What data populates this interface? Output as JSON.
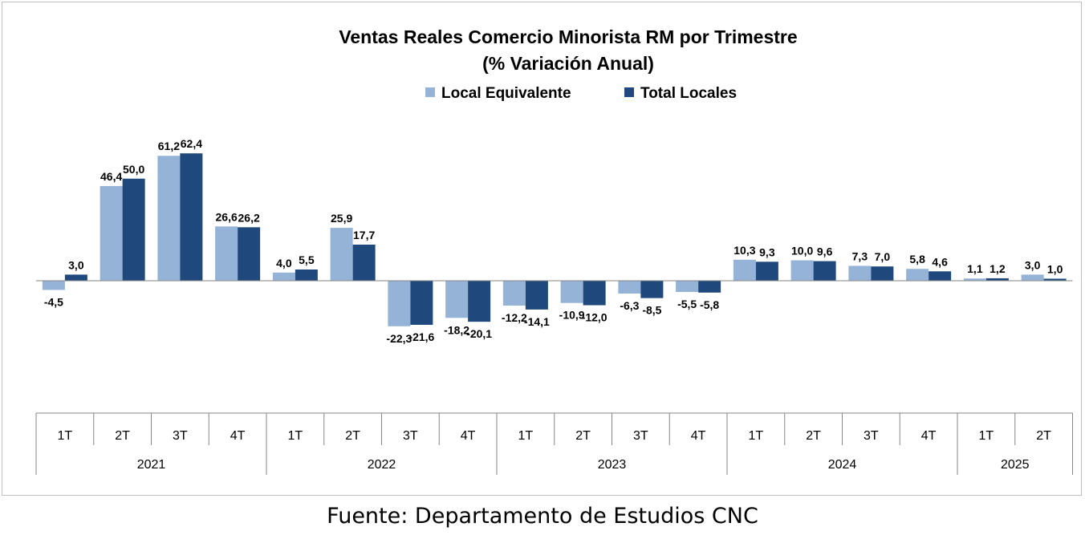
{
  "chart_data": {
    "type": "bar",
    "title": "Ventas Reales Comercio Minorista RM por Trimestre",
    "subtitle": "(% Variación Anual)",
    "legend_position": "top-center",
    "grid": false,
    "categories": [
      "1T",
      "2T",
      "3T",
      "4T",
      "1T",
      "2T",
      "3T",
      "4T",
      "1T",
      "2T",
      "3T",
      "4T",
      "1T",
      "2T",
      "3T",
      "4T",
      "1T",
      "2T"
    ],
    "years": [
      {
        "label": "2021",
        "span": 4
      },
      {
        "label": "2022",
        "span": 4
      },
      {
        "label": "2023",
        "span": 4
      },
      {
        "label": "2024",
        "span": 4
      },
      {
        "label": "2025",
        "span": 2
      }
    ],
    "series": [
      {
        "name": "Local Equivalente",
        "color": "#95b3d7",
        "values": [
          -4.5,
          46.4,
          61.2,
          26.6,
          4.0,
          25.9,
          -22.3,
          -18.2,
          -12.2,
          -10.9,
          -6.3,
          -5.5,
          10.3,
          10.0,
          7.3,
          5.8,
          1.1,
          3.0
        ],
        "labels": [
          "-4,5",
          "46,4",
          "61,2",
          "26,6",
          "4,0",
          "25,9",
          "-22,3",
          "-18,2",
          "-12,2",
          "-10,9",
          "-6,3",
          "-5,5",
          "10,3",
          "10,0",
          "7,3",
          "5,8",
          "1,1",
          "3,0"
        ]
      },
      {
        "name": "Total Locales",
        "color": "#1f497d",
        "values": [
          3.0,
          50.0,
          62.4,
          26.2,
          5.5,
          17.7,
          -21.6,
          -20.1,
          -14.1,
          -12.0,
          -8.5,
          -5.8,
          9.3,
          9.6,
          7.0,
          4.6,
          1.2,
          1.0
        ],
        "labels": [
          "3,0",
          "50,0",
          "62,4",
          "26,2",
          "5,5",
          "17,7",
          "-21,6",
          "-20,1",
          "-14,1",
          "-12,0",
          "-8,5",
          "-5,8",
          "9,3",
          "9,6",
          "7,0",
          "4,6",
          "1,2",
          "1,0"
        ]
      }
    ],
    "ylim": [
      -60,
      70
    ]
  },
  "source_note": "Fuente: Departamento de Estudios CNC"
}
